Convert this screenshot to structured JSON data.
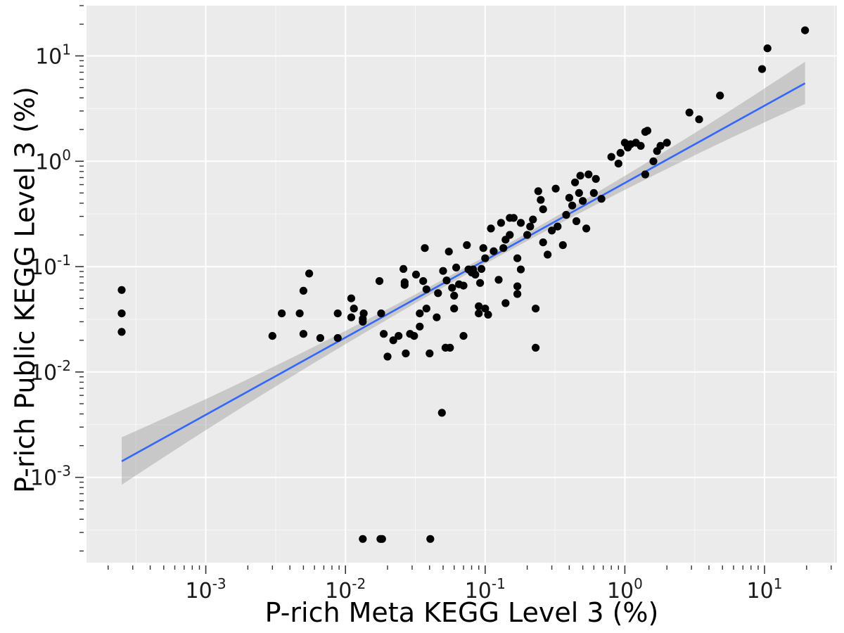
{
  "chart_data": {
    "type": "scatter",
    "xlabel": "P-rich Meta KEGG Level 3 (%)",
    "ylabel": "P-rich Public KEGG Level 3 (%)",
    "x_scale": "log10",
    "y_scale": "log10",
    "xlim": [
      0.00014,
      33
    ],
    "ylim": [
      0.000155,
      30
    ],
    "x_ticks": [
      {
        "value": 0.001,
        "base": "10",
        "exp": "-3"
      },
      {
        "value": 0.01,
        "base": "10",
        "exp": "-2"
      },
      {
        "value": 0.1,
        "base": "10",
        "exp": "-1"
      },
      {
        "value": 1,
        "base": "10",
        "exp": "0"
      },
      {
        "value": 10,
        "base": "10",
        "exp": "1"
      }
    ],
    "y_ticks": [
      {
        "value": 0.001,
        "base": "10",
        "exp": "-3"
      },
      {
        "value": 0.01,
        "base": "10",
        "exp": "-2"
      },
      {
        "value": 0.1,
        "base": "10",
        "exp": "-1"
      },
      {
        "value": 1,
        "base": "10",
        "exp": "0"
      },
      {
        "value": 10,
        "base": "10",
        "exp": "1"
      }
    ],
    "grid": true,
    "fit_line": {
      "x": [
        0.00025,
        19.5
      ],
      "y": [
        0.00142,
        5.5
      ],
      "ci_lower": [
        0.00085,
        3.5
      ],
      "ci_upper": [
        0.0024,
        8.8
      ]
    },
    "points": [
      [
        0.00025,
        0.06
      ],
      [
        0.00025,
        0.036
      ],
      [
        0.00025,
        0.024
      ],
      [
        0.003,
        0.022
      ],
      [
        0.0035,
        0.036
      ],
      [
        0.0047,
        0.036
      ],
      [
        0.005,
        0.059
      ],
      [
        0.005,
        0.023
      ],
      [
        0.0055,
        0.086
      ],
      [
        0.0066,
        0.021
      ],
      [
        0.0088,
        0.021
      ],
      [
        0.0088,
        0.036
      ],
      [
        0.011,
        0.033
      ],
      [
        0.011,
        0.05
      ],
      [
        0.0115,
        0.04
      ],
      [
        0.0133,
        0.032
      ],
      [
        0.0135,
        0.036
      ],
      [
        0.0133,
        0.03
      ],
      [
        0.0175,
        0.073
      ],
      [
        0.018,
        0.036
      ],
      [
        0.0188,
        0.023
      ],
      [
        0.02,
        0.014
      ],
      [
        0.022,
        0.02
      ],
      [
        0.024,
        0.022
      ],
      [
        0.026,
        0.095
      ],
      [
        0.0265,
        0.071
      ],
      [
        0.0265,
        0.067
      ],
      [
        0.027,
        0.015
      ],
      [
        0.029,
        0.023
      ],
      [
        0.031,
        0.022
      ],
      [
        0.032,
        0.084
      ],
      [
        0.034,
        0.036
      ],
      [
        0.034,
        0.027
      ],
      [
        0.036,
        0.073
      ],
      [
        0.038,
        0.04
      ],
      [
        0.038,
        0.061
      ],
      [
        0.037,
        0.15
      ],
      [
        0.04,
        0.015
      ],
      [
        0.045,
        0.033
      ],
      [
        0.046,
        0.056
      ],
      [
        0.05,
        0.091
      ],
      [
        0.052,
        0.017
      ],
      [
        0.053,
        0.074
      ],
      [
        0.055,
        0.139
      ],
      [
        0.056,
        0.017
      ],
      [
        0.058,
        0.063
      ],
      [
        0.06,
        0.04
      ],
      [
        0.06,
        0.053
      ],
      [
        0.062,
        0.098
      ],
      [
        0.065,
        0.068
      ],
      [
        0.07,
        0.022
      ],
      [
        0.07,
        0.066
      ],
      [
        0.074,
        0.16
      ],
      [
        0.076,
        0.094
      ],
      [
        0.08,
        0.088
      ],
      [
        0.082,
        0.094
      ],
      [
        0.085,
        0.084
      ],
      [
        0.09,
        0.042
      ],
      [
        0.09,
        0.036
      ],
      [
        0.092,
        0.07
      ],
      [
        0.094,
        0.095
      ],
      [
        0.097,
        0.15
      ],
      [
        0.1,
        0.12
      ],
      [
        0.1,
        0.04
      ],
      [
        0.105,
        0.035
      ],
      [
        0.11,
        0.23
      ],
      [
        0.115,
        0.14
      ],
      [
        0.125,
        0.075
      ],
      [
        0.13,
        0.26
      ],
      [
        0.135,
        0.15
      ],
      [
        0.14,
        0.18
      ],
      [
        0.14,
        0.045
      ],
      [
        0.15,
        0.2
      ],
      [
        0.15,
        0.29
      ],
      [
        0.16,
        0.29
      ],
      [
        0.17,
        0.12
      ],
      [
        0.17,
        0.055
      ],
      [
        0.17,
        0.065
      ],
      [
        0.18,
        0.094
      ],
      [
        0.18,
        0.26
      ],
      [
        0.2,
        0.2
      ],
      [
        0.21,
        0.24
      ],
      [
        0.22,
        0.28
      ],
      [
        0.23,
        0.04
      ],
      [
        0.23,
        0.017
      ],
      [
        0.24,
        0.52
      ],
      [
        0.25,
        0.43
      ],
      [
        0.26,
        0.35
      ],
      [
        0.26,
        0.17
      ],
      [
        0.28,
        0.13
      ],
      [
        0.3,
        0.22
      ],
      [
        0.32,
        0.55
      ],
      [
        0.33,
        0.24
      ],
      [
        0.36,
        0.16
      ],
      [
        0.38,
        0.31
      ],
      [
        0.4,
        0.45
      ],
      [
        0.42,
        0.38
      ],
      [
        0.44,
        0.63
      ],
      [
        0.45,
        0.27
      ],
      [
        0.47,
        0.5
      ],
      [
        0.48,
        0.73
      ],
      [
        0.5,
        0.42
      ],
      [
        0.53,
        0.23
      ],
      [
        0.55,
        0.75
      ],
      [
        0.6,
        0.5
      ],
      [
        0.62,
        0.68
      ],
      [
        0.68,
        0.44
      ],
      [
        0.8,
        1.1
      ],
      [
        0.9,
        0.95
      ],
      [
        0.93,
        1.2
      ],
      [
        1.0,
        1.5
      ],
      [
        1.05,
        1.35
      ],
      [
        1.1,
        1.45
      ],
      [
        1.2,
        1.5
      ],
      [
        1.3,
        1.4
      ],
      [
        1.4,
        1.9
      ],
      [
        1.45,
        1.95
      ],
      [
        1.4,
        0.75
      ],
      [
        1.6,
        1.0
      ],
      [
        1.7,
        1.25
      ],
      [
        1.8,
        1.4
      ],
      [
        2.0,
        1.5
      ],
      [
        2.9,
        2.9
      ],
      [
        3.4,
        2.5
      ],
      [
        4.8,
        4.2
      ],
      [
        9.6,
        7.5
      ],
      [
        10.5,
        11.8
      ],
      [
        19.5,
        17.5
      ],
      [
        0.0133,
        0.00026
      ],
      [
        0.0178,
        0.00026
      ],
      [
        0.0183,
        0.00026
      ],
      [
        0.0405,
        0.00026
      ],
      [
        0.049,
        0.0041
      ]
    ]
  }
}
